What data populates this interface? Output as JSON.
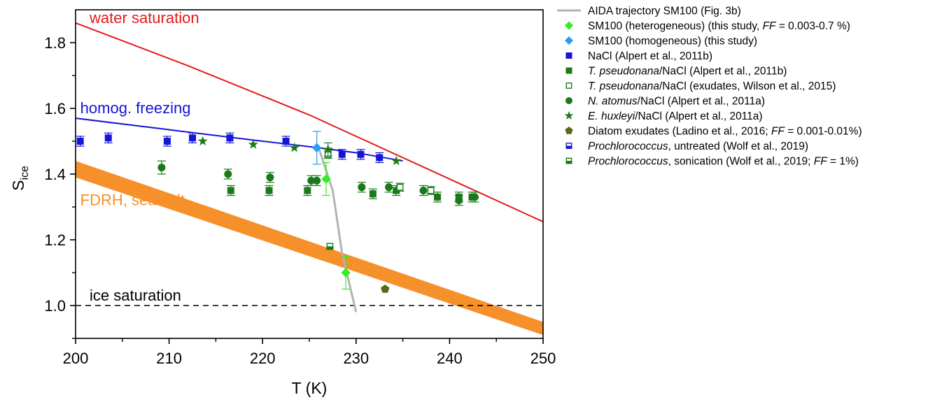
{
  "chart_data": {
    "type": "scatter",
    "xlabel": "T (K)",
    "ylabel": "S",
    "ylabel_sub": "ice",
    "xlim": [
      200,
      250
    ],
    "ylim": [
      0.9,
      1.9
    ],
    "x_ticks": [
      200,
      210,
      220,
      230,
      240,
      250
    ],
    "x_tick_labels": [
      "200",
      "210",
      "220",
      "230",
      "240",
      "250"
    ],
    "y_ticks": [
      1.0,
      1.2,
      1.4,
      1.6,
      1.8
    ],
    "y_tick_labels": [
      "1.0",
      "1.2",
      "1.4",
      "1.6",
      "1.8"
    ],
    "grid": false,
    "legend_position": "right, outside plot",
    "annotations": [
      {
        "text": "water saturation",
        "color": "#e31a1c",
        "x": 201.5,
        "y": 1.86
      },
      {
        "text": "homog. freezing",
        "color": "#1515d8",
        "x": 200.5,
        "y": 1.585
      },
      {
        "text": "FDRH, sea salt",
        "color": "#f5902a",
        "x": 200.5,
        "y": 1.305
      },
      {
        "text": "ice saturation",
        "color": "#000000",
        "x": 201.5,
        "y": 1.015
      }
    ],
    "lines": [
      {
        "id": "water-sat",
        "color": "#e31a1c",
        "style": "solid",
        "points": [
          [
            200,
            1.86
          ],
          [
            212,
            1.73
          ],
          [
            225,
            1.58
          ],
          [
            240,
            1.385
          ],
          [
            250,
            1.255
          ]
        ]
      },
      {
        "id": "homog",
        "color": "#1515d8",
        "style": "solid",
        "points": [
          [
            200,
            1.57
          ],
          [
            210,
            1.535
          ],
          [
            220,
            1.5
          ],
          [
            226,
            1.48
          ],
          [
            230,
            1.465
          ],
          [
            235,
            1.44
          ]
        ]
      },
      {
        "id": "ice-sat",
        "color": "#000000",
        "style": "dashed",
        "points": [
          [
            200,
            1.0
          ],
          [
            250,
            1.0
          ]
        ]
      }
    ],
    "bands": [
      {
        "id": "fdrh",
        "color": "#f5902a",
        "upper": [
          [
            200,
            1.44
          ],
          [
            250,
            0.95
          ]
        ],
        "lower": [
          [
            200,
            1.39
          ],
          [
            250,
            0.91
          ]
        ]
      }
    ],
    "series": [
      {
        "name": "AIDA trajectory SM100 (Fig. 3b)",
        "kind": "line",
        "color": "#b3b3b3",
        "points": [
          [
            226,
            1.48
          ],
          [
            227.5,
            1.35
          ],
          [
            228.5,
            1.16
          ],
          [
            230,
            0.98
          ]
        ]
      },
      {
        "name": "SM100 (heterogeneous) (this study, FF = 0.003-0.7 %)",
        "kind": "diamond",
        "color": "#33ee22",
        "err_color": "#33ee22",
        "points": [
          [
            226.8,
            1.385,
            0.05
          ],
          [
            228.9,
            1.1,
            0.05
          ]
        ]
      },
      {
        "name": "SM100 (homogeneous) (this study)",
        "kind": "diamond",
        "color": "#2a9df4",
        "err_color": "#2a9df4",
        "points": [
          [
            225.8,
            1.48,
            0.05
          ]
        ]
      },
      {
        "name": "NaCl (Alpert et al., 2011b)",
        "kind": "square",
        "color": "#1515d8",
        "err_color": "#1515d8",
        "points": [
          [
            200.5,
            1.5,
            0.015
          ],
          [
            203.5,
            1.51,
            0.015
          ],
          [
            209.8,
            1.5,
            0.015
          ],
          [
            212.5,
            1.51,
            0.015
          ],
          [
            216.5,
            1.51,
            0.015
          ],
          [
            222.5,
            1.5,
            0.015
          ],
          [
            228.5,
            1.46,
            0.015
          ],
          [
            230.5,
            1.46,
            0.015
          ],
          [
            232.5,
            1.45,
            0.015
          ]
        ]
      },
      {
        "name": "T. pseudonana/NaCl (Alpert et al., 2011b)",
        "kind": "square",
        "color": "#1a7a1a",
        "err_color": "#1a7a1a",
        "points": [
          [
            216.6,
            1.35,
            0.015
          ],
          [
            220.7,
            1.35,
            0.015
          ],
          [
            224.8,
            1.35,
            0.015
          ],
          [
            231.8,
            1.34,
            0.015
          ],
          [
            234.3,
            1.35,
            0.015
          ],
          [
            238.7,
            1.33,
            0.015
          ],
          [
            241,
            1.33,
            0.015
          ],
          [
            242.4,
            1.33,
            0.015
          ]
        ]
      },
      {
        "name": "T. pseudonana/NaCl (exudates, Wilson et al., 2015)",
        "kind": "square-open",
        "color": "#1a7a1a",
        "err_color": "#1a7a1a",
        "points": [
          [
            227,
            1.46,
            0.012
          ],
          [
            234.7,
            1.36,
            0.012
          ],
          [
            238,
            1.35,
            0.012
          ]
        ]
      },
      {
        "name": "N. atomus/NaCl (Alpert et al., 2011a)",
        "kind": "circle",
        "color": "#1a7a1a",
        "err_color": "#1a7a1a",
        "points": [
          [
            209.2,
            1.42,
            0.02
          ],
          [
            216.3,
            1.4,
            0.015
          ],
          [
            220.8,
            1.39,
            0.015
          ],
          [
            225.2,
            1.38,
            0.015
          ],
          [
            225.8,
            1.38,
            0.015
          ],
          [
            230.6,
            1.36,
            0.015
          ],
          [
            233.5,
            1.36,
            0.015
          ],
          [
            237.2,
            1.35,
            0.015
          ],
          [
            241,
            1.32,
            0.015
          ],
          [
            242.7,
            1.33,
            0.015
          ]
        ]
      },
      {
        "name": "E. huxleyi/NaCl (Alpert et al., 2011a)",
        "kind": "star",
        "color": "#1a7a1a",
        "err_color": "#1a7a1a",
        "points": [
          [
            213.6,
            1.5,
            0
          ],
          [
            219,
            1.49,
            0
          ],
          [
            223.4,
            1.48,
            0
          ],
          [
            227,
            1.475,
            0.02
          ],
          [
            234.3,
            1.44,
            0
          ]
        ]
      },
      {
        "name": "Diatom exudates (Ladino et al., 2016; FF = 0.001-0.01%)",
        "kind": "pentagon",
        "color": "#556b16",
        "err_color": "#556b16",
        "points": [
          [
            233.1,
            1.05,
            0
          ]
        ]
      },
      {
        "name": "Prochlorococcus, untreated (Wolf et al., 2019)",
        "kind": "halfsq",
        "color": "#1515d8",
        "err_color": "#1515d8",
        "points": []
      },
      {
        "name": "Prochlorococcus, sonication (Wolf et al., 2019; FF = 1%)",
        "kind": "halfsq",
        "color": "#1a7a1a",
        "err_color": "#1a7a1a",
        "points": [
          [
            227.2,
            1.18,
            0
          ]
        ]
      }
    ]
  },
  "legend": [
    {
      "key": "aida",
      "kind": "line",
      "color": "#b3b3b3",
      "parts": [
        {
          "t": "AIDA trajectory SM100 (Fig. 3b)",
          "i": false
        }
      ]
    },
    {
      "key": "sm100-het",
      "kind": "diamond",
      "color": "#33ee22",
      "parts": [
        {
          "t": "SM100 (heterogeneous) (this study, ",
          "i": false
        },
        {
          "t": "FF",
          "i": true
        },
        {
          "t": " = 0.003-0.7 %)",
          "i": false
        }
      ]
    },
    {
      "key": "sm100-hom",
      "kind": "diamond",
      "color": "#2a9df4",
      "parts": [
        {
          "t": "SM100 (homogeneous) (this study)",
          "i": false
        }
      ]
    },
    {
      "key": "nacl",
      "kind": "square",
      "color": "#1515d8",
      "parts": [
        {
          "t": "NaCl (Alpert et al., 2011b)",
          "i": false
        }
      ]
    },
    {
      "key": "tpseud",
      "kind": "square",
      "color": "#1a7a1a",
      "parts": [
        {
          "t": "T. pseudonana",
          "i": true
        },
        {
          "t": "/NaCl (Alpert et al., 2011b)",
          "i": false
        }
      ]
    },
    {
      "key": "tpseud-exud",
      "kind": "square-open",
      "color": "#1a7a1a",
      "parts": [
        {
          "t": "T. pseudonana",
          "i": true
        },
        {
          "t": "/NaCl (exudates, Wilson et al., 2015)",
          "i": false
        }
      ]
    },
    {
      "key": "natomus",
      "kind": "circle",
      "color": "#1a7a1a",
      "parts": [
        {
          "t": "N. atomus",
          "i": true
        },
        {
          "t": "/NaCl (Alpert et al., 2011a)",
          "i": false
        }
      ]
    },
    {
      "key": "ehux",
      "kind": "star",
      "color": "#1a7a1a",
      "parts": [
        {
          "t": "E. huxleyi",
          "i": true
        },
        {
          "t": "/NaCl (Alpert et al., 2011a)",
          "i": false
        }
      ]
    },
    {
      "key": "diatom",
      "kind": "pentagon",
      "color": "#556b16",
      "parts": [
        {
          "t": "Diatom exudates (Ladino et al., 2016; ",
          "i": false
        },
        {
          "t": "FF",
          "i": true
        },
        {
          "t": " = 0.001-0.01%)",
          "i": false
        }
      ]
    },
    {
      "key": "proc-untreated",
      "kind": "halfsq",
      "color": "#1515d8",
      "parts": [
        {
          "t": "Prochlorococcus",
          "i": true
        },
        {
          "t": ", untreated (Wolf et al., 2019)",
          "i": false
        }
      ]
    },
    {
      "key": "proc-sonic",
      "kind": "halfsq",
      "color": "#1a7a1a",
      "parts": [
        {
          "t": "Prochlorococcus",
          "i": true
        },
        {
          "t": ", sonication (Wolf et al., 2019; ",
          "i": false
        },
        {
          "t": "FF",
          "i": true
        },
        {
          "t": " = 1%)",
          "i": false
        }
      ]
    }
  ]
}
